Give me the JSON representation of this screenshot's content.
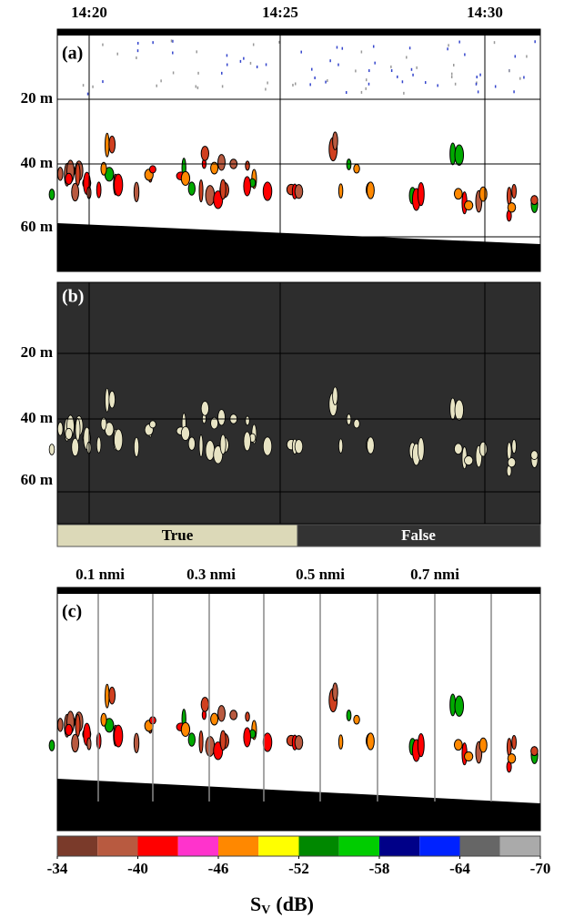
{
  "panel_a": {
    "label": "(a)",
    "times": [
      "14:20",
      "14:25",
      "14:30"
    ],
    "depths": [
      "20 m",
      "40 m",
      "60 m"
    ]
  },
  "panel_b": {
    "label": "(b)",
    "depths": [
      "20 m",
      "40 m",
      "60 m"
    ],
    "legend": [
      "True",
      "False"
    ],
    "legend_colors": [
      "#dcd9b8",
      "#333333"
    ]
  },
  "panel_c": {
    "label": "(c)",
    "distances": [
      "0.1 nmi",
      "0.3 nmi",
      "0.5 nmi",
      "0.7 nmi"
    ]
  },
  "colorbar": {
    "colors": [
      "#7a3a2a",
      "#b85a40",
      "#ff0000",
      "#ff33cc",
      "#ff8800",
      "#ffff00",
      "#008800",
      "#00cc00",
      "#000088",
      "#0022ff",
      "#666666",
      "#aaaaaa"
    ],
    "range": [
      -34,
      -70
    ],
    "ticks": [
      -34,
      -40,
      -46,
      -52,
      -58,
      -64,
      -70
    ],
    "title": {
      "symbol": "S",
      "subscript": "V",
      "unit": "(dB)"
    }
  }
}
